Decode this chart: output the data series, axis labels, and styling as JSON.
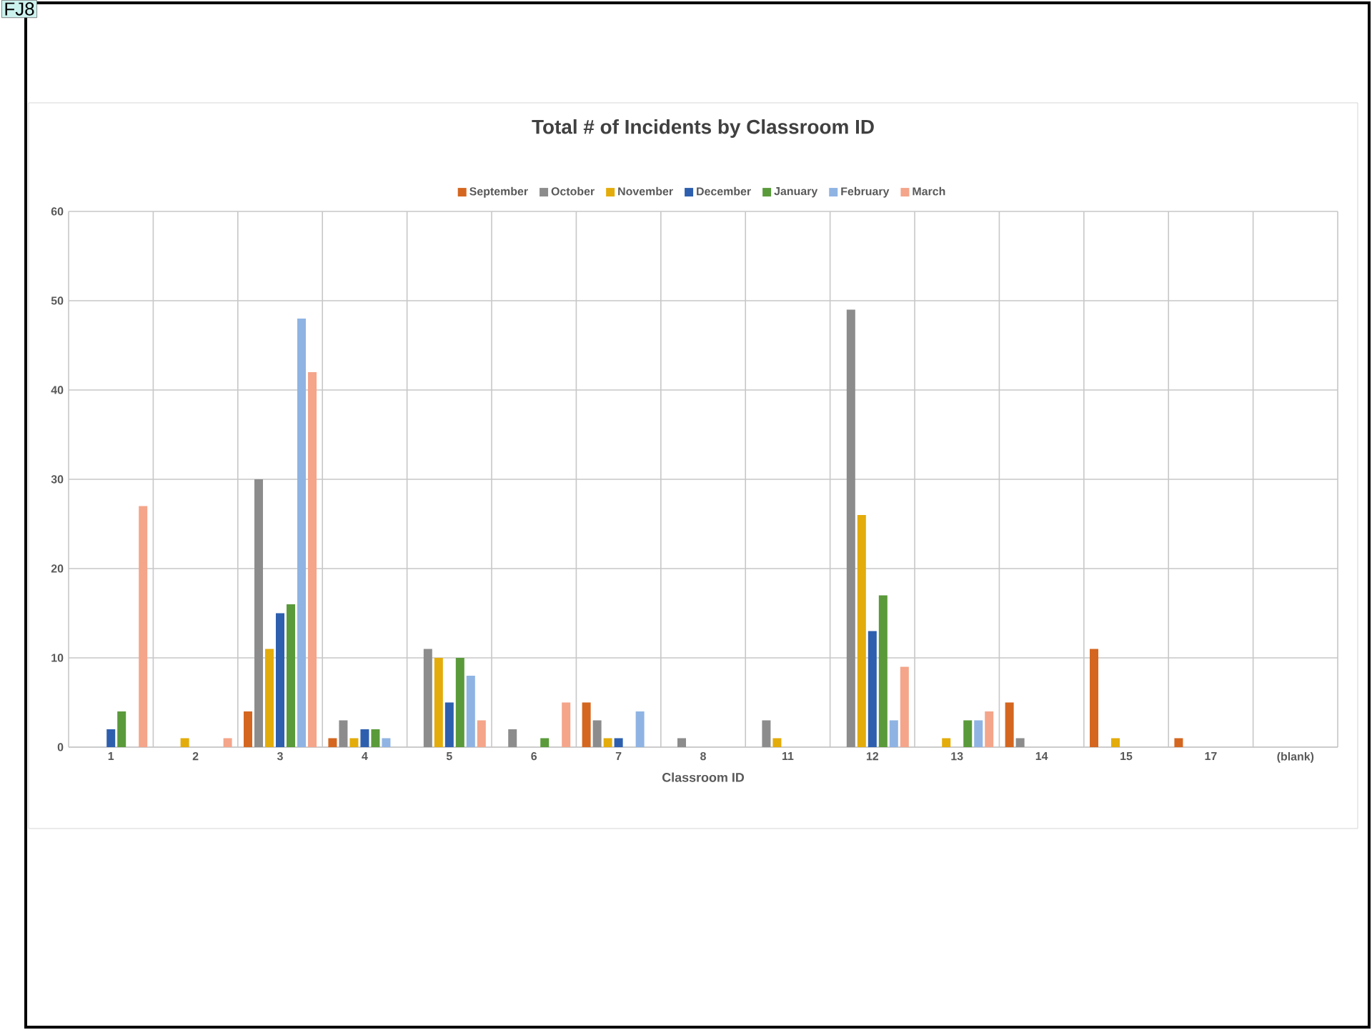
{
  "chart_data": {
    "type": "bar",
    "title": "Total # of Incidents by Classroom ID",
    "xlabel": "Classroom ID",
    "annotations": [
      "FJ8"
    ],
    "categories": [
      "1",
      "2",
      "3",
      "4",
      "5",
      "6",
      "7",
      "8",
      "11",
      "12",
      "13",
      "14",
      "15",
      "17",
      "(blank)"
    ],
    "series": [
      {
        "name": "September",
        "color": "#d4661f",
        "values": [
          null,
          null,
          4,
          1,
          null,
          null,
          5,
          null,
          null,
          null,
          null,
          5,
          11,
          1,
          null
        ]
      },
      {
        "name": "October",
        "color": "#8c8c8c",
        "values": [
          null,
          null,
          30,
          3,
          11,
          2,
          3,
          1,
          3,
          49,
          null,
          1,
          null,
          null,
          null
        ]
      },
      {
        "name": "November",
        "color": "#e3ac0b",
        "values": [
          null,
          1,
          11,
          1,
          10,
          null,
          1,
          null,
          1,
          26,
          1,
          null,
          1,
          null,
          null
        ]
      },
      {
        "name": "December",
        "color": "#2e5fae",
        "values": [
          2,
          null,
          15,
          2,
          5,
          null,
          1,
          null,
          null,
          13,
          null,
          null,
          null,
          null,
          null
        ]
      },
      {
        "name": "January",
        "color": "#5a9a3a",
        "values": [
          4,
          null,
          16,
          2,
          10,
          1,
          null,
          null,
          null,
          17,
          3,
          null,
          null,
          null,
          null
        ]
      },
      {
        "name": "February",
        "color": "#8fb4e3",
        "values": [
          null,
          null,
          48,
          1,
          8,
          null,
          4,
          null,
          null,
          3,
          3,
          null,
          null,
          null,
          null
        ]
      },
      {
        "name": "March",
        "color": "#f4a58a",
        "values": [
          27,
          1,
          42,
          null,
          3,
          5,
          null,
          null,
          null,
          9,
          4,
          null,
          null,
          null,
          null
        ]
      }
    ],
    "ylim": [
      0,
      60
    ],
    "yticks": [
      0,
      10,
      20,
      30,
      40,
      50,
      60
    ],
    "grid": true,
    "legend": "top"
  }
}
